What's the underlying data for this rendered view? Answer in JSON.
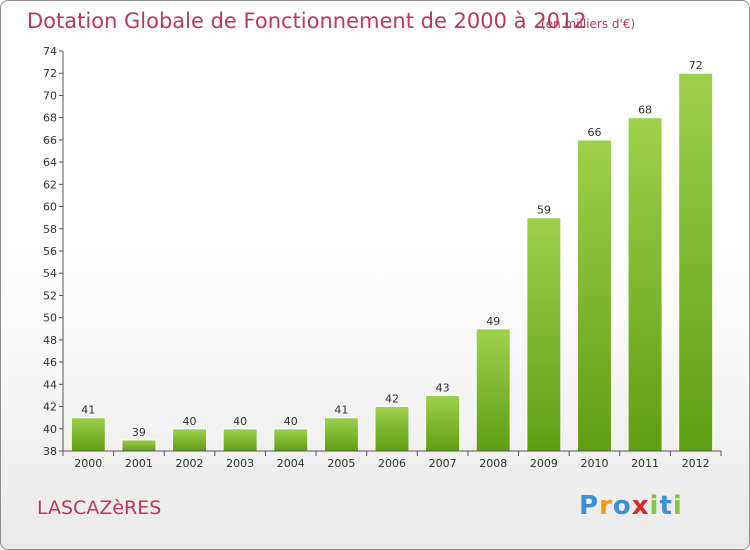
{
  "title": "Dotation Globale de Fonctionnement de 2000 à 2012",
  "subtitle": "(en milliers d'€)",
  "commune": "LASCAZèRES",
  "brand": {
    "letters": [
      "P",
      "r",
      "o",
      "x",
      "i",
      "t",
      "i"
    ],
    "colors": [
      "#3d8fd6",
      "#f29a16",
      "#3d8fd6",
      "#d42a2a",
      "#8bc43f",
      "#3d8fd6",
      "#8bc43f"
    ]
  },
  "colors": {
    "accent": "#c0365a",
    "bar_light": "#9dd14d",
    "bar_dark": "#5f9e12"
  },
  "chart_data": {
    "type": "bar",
    "categories": [
      "2000",
      "2001",
      "2002",
      "2003",
      "2004",
      "2005",
      "2006",
      "2007",
      "2008",
      "2009",
      "2010",
      "2011",
      "2012"
    ],
    "values": [
      41,
      39,
      40,
      40,
      40,
      41,
      42,
      43,
      49,
      59,
      66,
      68,
      72
    ],
    "title": "Dotation Globale de Fonctionnement de 2000 à 2012",
    "ylim": [
      38,
      74
    ],
    "yticks": [
      38,
      40,
      42,
      44,
      46,
      48,
      50,
      52,
      54,
      56,
      58,
      60,
      62,
      64,
      66,
      68,
      70,
      72,
      74
    ],
    "grid": false,
    "legend": "none"
  }
}
